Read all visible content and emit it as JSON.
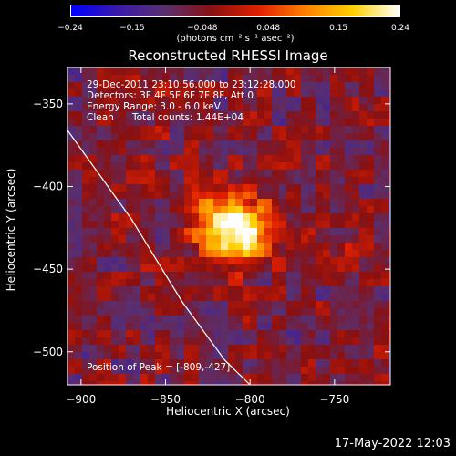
{
  "colorbar": {
    "ticks": [
      "−0.24",
      "−0.15",
      "−0.048",
      "0.048",
      "0.15",
      "0.24"
    ],
    "units": "(photons cm⁻² s⁻¹ asec⁻²)",
    "colors": [
      "#0000ff",
      "#3a1aa8",
      "#5a2f6e",
      "#8a1010",
      "#e02000",
      "#ff8000",
      "#ffd000",
      "#ffffff"
    ]
  },
  "chart_data": {
    "type": "heatmap",
    "title": "Reconstructed RHESSI Image",
    "xlabel": "Heliocentric X (arcsec)",
    "ylabel": "Heliocentric Y (arcsec)",
    "xlim": [
      -908,
      -717
    ],
    "ylim": [
      -520,
      -328
    ],
    "xticks": [
      -900,
      -850,
      -800,
      -750
    ],
    "yticks": [
      -350,
      -400,
      -450,
      -500
    ],
    "xtick_labels": [
      "−900",
      "−850",
      "−800",
      "−750"
    ],
    "ytick_labels": [
      "−350",
      "−400",
      "−450",
      "−500"
    ],
    "value_range": [
      -0.24,
      0.24
    ],
    "peak": {
      "x": -809,
      "y": -427
    },
    "limb_line": [
      [
        -908,
        -366
      ],
      [
        -870,
        -420
      ],
      [
        -840,
        -470
      ],
      [
        -815,
        -505
      ],
      [
        -800,
        -520
      ]
    ]
  },
  "annotations": {
    "time": "29-Dec-2011 23:10:56.000 to 23:12:28.000",
    "detectors": "Detectors: 3F 4F 5F 6F 7F 8F, Att 0",
    "energy": "Energy Range: 3.0 - 6.0 keV",
    "clean_label": "Clean",
    "counts": "Total counts: 1.44E+04",
    "peak": "Position of Peak = [-809,-427]"
  },
  "footer": "17-May-2022 12:03"
}
